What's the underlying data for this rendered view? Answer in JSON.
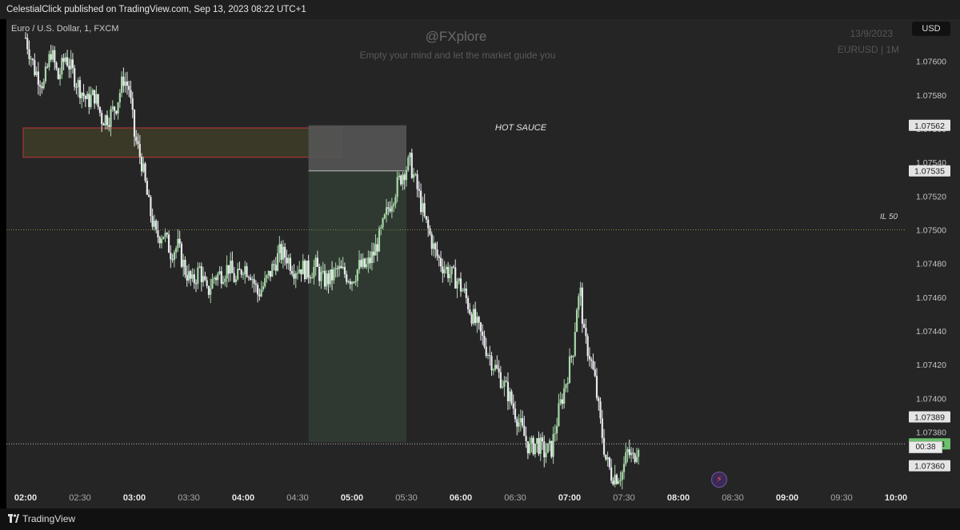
{
  "header": {
    "publisher_line": "CelestialClick published on TradingView.com, Sep 13, 2023 08:22 UTC+1"
  },
  "currency_button": "USD",
  "symbol_label": "Euro / U.S. Dollar, 1, FXCM",
  "watermark": {
    "title": "@FXplore",
    "subtitle": "Empty your mind and let the market guide you",
    "date": "13/9/2023",
    "symbol": "EURUSD | 1M"
  },
  "annotations": {
    "zone_label": "HOT SAUCE",
    "level_label": "IL 50",
    "countdown": "00:38"
  },
  "footer": {
    "brand": "TradingView"
  },
  "colors": {
    "up": "#a8d8a8",
    "down": "#e8e8ee",
    "zone_border": "#c03535",
    "current_price_tag": "#6ec06e",
    "target_zone": "#2f3a32",
    "stop_zone": "#555556"
  },
  "chart_data": {
    "type": "candlestick",
    "y_ticks": [
      "1.07600",
      "1.07580",
      "1.07560",
      "1.07540",
      "1.07520",
      "1.07500",
      "1.07480",
      "1.07460",
      "1.07440",
      "1.07420",
      "1.07400",
      "1.07380",
      "1.07360"
    ],
    "x_ticks": [
      {
        "label": "02:00",
        "bold": true
      },
      {
        "label": "02:30",
        "bold": false
      },
      {
        "label": "03:00",
        "bold": true
      },
      {
        "label": "03:30",
        "bold": false
      },
      {
        "label": "04:00",
        "bold": true
      },
      {
        "label": "04:30",
        "bold": false
      },
      {
        "label": "05:00",
        "bold": true
      },
      {
        "label": "05:30",
        "bold": false
      },
      {
        "label": "06:00",
        "bold": true
      },
      {
        "label": "06:30",
        "bold": false
      },
      {
        "label": "07:00",
        "bold": true
      },
      {
        "label": "07:30",
        "bold": false
      },
      {
        "label": "08:00",
        "bold": true
      },
      {
        "label": "08:30",
        "bold": false
      },
      {
        "label": "09:00",
        "bold": true
      },
      {
        "label": "09:30",
        "bold": false
      },
      {
        "label": "10:00",
        "bold": true
      }
    ],
    "y_range": [
      1.07347,
      1.07625
    ],
    "x_range_minutes": [
      0,
      480
    ],
    "price_tags": [
      {
        "value": "1.07562",
        "style": "light"
      },
      {
        "value": "1.07535",
        "style": "light"
      },
      {
        "value": "1.07389",
        "style": "light"
      },
      {
        "value": "1.07373",
        "style": "current"
      },
      {
        "value": "1.07360",
        "style": "light"
      }
    ],
    "levels": {
      "il50": 1.075,
      "current": 1.07373
    },
    "supply_zone": {
      "t_start": 0,
      "t_end": 174,
      "high": 1.0756,
      "low": 1.07544
    },
    "position": {
      "t_start": 156,
      "t_end": 210,
      "entry": 1.07535,
      "stop": 1.07562,
      "target": 1.07374
    },
    "path": [
      [
        0,
        1.07614
      ],
      [
        5,
        1.07595
      ],
      [
        10,
        1.07586
      ],
      [
        14,
        1.07606
      ],
      [
        18,
        1.0759
      ],
      [
        22,
        1.07603
      ],
      [
        28,
        1.07588
      ],
      [
        34,
        1.07576
      ],
      [
        38,
        1.0758
      ],
      [
        42,
        1.07566
      ],
      [
        46,
        1.07567
      ],
      [
        50,
        1.07574
      ],
      [
        54,
        1.0759
      ],
      [
        57,
        1.07584
      ],
      [
        60,
        1.07556
      ],
      [
        64,
        1.0754
      ],
      [
        68,
        1.07514
      ],
      [
        72,
        1.07496
      ],
      [
        76,
        1.07498
      ],
      [
        80,
        1.07487
      ],
      [
        84,
        1.0749
      ],
      [
        88,
        1.07476
      ],
      [
        92,
        1.07468
      ],
      [
        96,
        1.07477
      ],
      [
        100,
        1.07462
      ],
      [
        104,
        1.07472
      ],
      [
        108,
        1.07474
      ],
      [
        112,
        1.07478
      ],
      [
        116,
        1.07469
      ],
      [
        120,
        1.07479
      ],
      [
        124,
        1.07475
      ],
      [
        128,
        1.07462
      ],
      [
        132,
        1.07468
      ],
      [
        136,
        1.07477
      ],
      [
        140,
        1.07486
      ],
      [
        144,
        1.07484
      ],
      [
        148,
        1.07477
      ],
      [
        152,
        1.07478
      ],
      [
        156,
        1.07475
      ],
      [
        160,
        1.07478
      ],
      [
        164,
        1.0747
      ],
      [
        168,
        1.07471
      ],
      [
        172,
        1.07476
      ],
      [
        176,
        1.07474
      ],
      [
        180,
        1.07471
      ],
      [
        184,
        1.07478
      ],
      [
        188,
        1.07478
      ],
      [
        192,
        1.07486
      ],
      [
        196,
        1.07498
      ],
      [
        200,
        1.07513
      ],
      [
        204,
        1.07524
      ],
      [
        208,
        1.07534
      ],
      [
        212,
        1.0754
      ],
      [
        214,
        1.07532
      ],
      [
        217,
        1.0752
      ],
      [
        220,
        1.07506
      ],
      [
        222,
        1.075
      ],
      [
        226,
        1.07486
      ],
      [
        230,
        1.07479
      ],
      [
        234,
        1.07474
      ],
      [
        238,
        1.0747
      ],
      [
        242,
        1.07462
      ],
      [
        246,
        1.0745
      ],
      [
        250,
        1.0744
      ],
      [
        254,
        1.0743
      ],
      [
        258,
        1.0742
      ],
      [
        262,
        1.07412
      ],
      [
        266,
        1.07403
      ],
      [
        270,
        1.07392
      ],
      [
        274,
        1.0738
      ],
      [
        278,
        1.0737
      ],
      [
        282,
        1.07374
      ],
      [
        286,
        1.07368
      ],
      [
        290,
        1.0737
      ],
      [
        294,
        1.07392
      ],
      [
        298,
        1.0741
      ],
      [
        302,
        1.0743
      ],
      [
        304,
        1.07455
      ],
      [
        306,
        1.07462
      ],
      [
        308,
        1.07436
      ],
      [
        311,
        1.07426
      ],
      [
        314,
        1.0741
      ],
      [
        317,
        1.07385
      ],
      [
        320,
        1.07364
      ],
      [
        323,
        1.07355
      ],
      [
        326,
        1.07354
      ],
      [
        329,
        1.07356
      ],
      [
        332,
        1.07368
      ],
      [
        335,
        1.07364
      ],
      [
        338,
        1.07374
      ]
    ]
  }
}
